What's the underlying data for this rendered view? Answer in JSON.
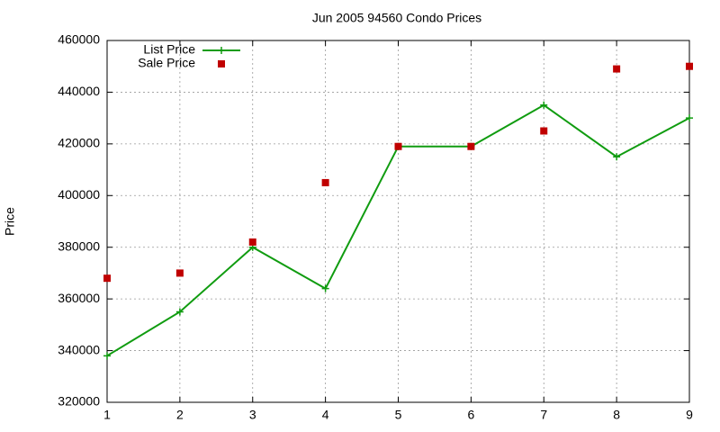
{
  "chart_data": {
    "type": "line",
    "title": "Jun 2005 94560 Condo Prices",
    "y_label": "Price",
    "x": [
      1,
      2,
      3,
      4,
      5,
      6,
      7,
      8,
      9
    ],
    "series": [
      {
        "name": "List Price",
        "color": "#109c10",
        "style": "linespoints",
        "values": [
          338000,
          355000,
          380000,
          364000,
          419000,
          419000,
          435000,
          415000,
          430000
        ]
      },
      {
        "name": "Sale Price",
        "color": "#c00000",
        "style": "points",
        "values": [
          368000,
          370000,
          382000,
          405000,
          419000,
          419000,
          425000,
          449000,
          450000
        ]
      }
    ],
    "xlim": [
      1,
      9
    ],
    "xticks": [
      1,
      2,
      3,
      4,
      5,
      6,
      7,
      8,
      9
    ],
    "ylim": [
      320000,
      460000
    ],
    "yticks": [
      320000,
      340000,
      360000,
      380000,
      400000,
      420000,
      440000,
      460000
    ],
    "grid": true,
    "legend": "top-left"
  }
}
